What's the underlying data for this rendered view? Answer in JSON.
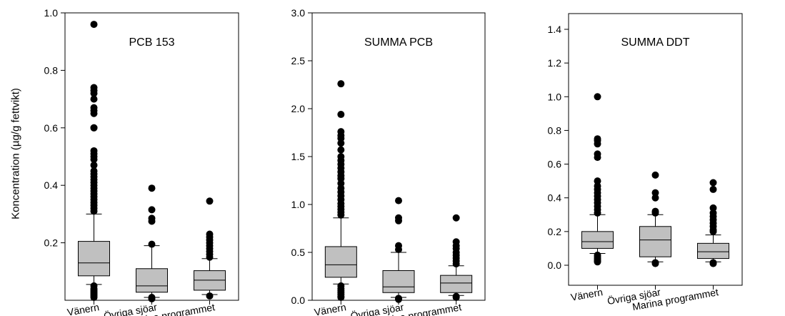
{
  "ylabel": "Koncentration (µg/g fettvikt)",
  "categories": [
    "Vänern",
    "Övriga sjöar",
    "Marina programmet"
  ],
  "colors": {
    "box_fill": "#c0c0c0",
    "stroke": "#000000",
    "outlier": "#000000"
  },
  "chart_data": [
    {
      "type": "box",
      "title": "PCB 153",
      "ylabel": "Koncentration (µg/g fettvikt)",
      "ylim": [
        0,
        1.0
      ],
      "yticks": [
        "0.2",
        "0.4",
        "0.6",
        "0.8",
        "1.0"
      ],
      "categories": [
        "Vänern",
        "Övriga sjöar",
        "Marina programmet"
      ],
      "boxes": [
        {
          "whisker_low": 0.055,
          "q1": 0.085,
          "median": 0.13,
          "q3": 0.205,
          "whisker_high": 0.3,
          "outliers": [
            0.96,
            0.74,
            0.73,
            0.72,
            0.7,
            0.67,
            0.66,
            0.65,
            0.6,
            0.6,
            0.52,
            0.51,
            0.5,
            0.49,
            0.47,
            0.45,
            0.44,
            0.43,
            0.42,
            0.41,
            0.4,
            0.39,
            0.38,
            0.37,
            0.36,
            0.35,
            0.34,
            0.33,
            0.32,
            0.31,
            0.05,
            0.04,
            0.035,
            0.03,
            0.025,
            0.02,
            0.015,
            0.01
          ]
        },
        {
          "whisker_low": 0.01,
          "q1": 0.028,
          "median": 0.05,
          "q3": 0.11,
          "whisker_high": 0.19,
          "outliers": [
            0.39,
            0.315,
            0.285,
            0.275,
            0.195,
            0.01,
            0.005
          ]
        },
        {
          "whisker_low": 0.02,
          "q1": 0.035,
          "median": 0.07,
          "q3": 0.103,
          "whisker_high": 0.145,
          "outliers": [
            0.345,
            0.23,
            0.22,
            0.21,
            0.2,
            0.19,
            0.18,
            0.17,
            0.16,
            0.15,
            0.015
          ]
        }
      ]
    },
    {
      "type": "box",
      "title": "SUMMA PCB",
      "ylim": [
        0,
        3.0
      ],
      "yticks": [
        "0.0",
        "0.5",
        "1.0",
        "1.5",
        "2.0",
        "2.5",
        "3.0"
      ],
      "categories": [
        "Vänern",
        "Övriga sjöar",
        "Marina programmet"
      ],
      "boxes": [
        {
          "whisker_low": 0.17,
          "q1": 0.24,
          "median": 0.37,
          "q3": 0.56,
          "whisker_high": 0.86,
          "outliers": [
            2.26,
            1.94,
            1.76,
            1.72,
            1.69,
            1.64,
            1.57,
            1.5,
            1.46,
            1.42,
            1.38,
            1.34,
            1.3,
            1.27,
            1.22,
            1.17,
            1.13,
            1.09,
            1.05,
            1.01,
            0.98,
            0.95,
            0.92,
            0.89,
            0.15,
            0.12,
            0.1,
            0.08,
            0.06,
            0.04,
            0.03
          ]
        },
        {
          "whisker_low": 0.03,
          "q1": 0.08,
          "median": 0.14,
          "q3": 0.31,
          "whisker_high": 0.5,
          "outliers": [
            1.04,
            0.86,
            0.83,
            0.57,
            0.53,
            0.02,
            0.01
          ]
        },
        {
          "whisker_low": 0.05,
          "q1": 0.08,
          "median": 0.18,
          "q3": 0.26,
          "whisker_high": 0.36,
          "outliers": [
            0.86,
            0.61,
            0.57,
            0.54,
            0.5,
            0.47,
            0.44,
            0.41,
            0.38,
            0.04,
            0.03
          ]
        }
      ]
    },
    {
      "type": "box",
      "title": "SUMMA DDT",
      "ylim": [
        -0.09,
        1.5
      ],
      "yticks": [
        "0.0",
        "0.2",
        "0.4",
        "0.6",
        "0.8",
        "1.0",
        "1.2",
        "1.4"
      ],
      "categories": [
        "Vänern",
        "Övriga sjöar",
        "Marina programmet"
      ],
      "boxes": [
        {
          "whisker_low": 0.07,
          "q1": 0.1,
          "median": 0.14,
          "q3": 0.2,
          "whisker_high": 0.3,
          "outliers": [
            1.0,
            0.75,
            0.74,
            0.72,
            0.66,
            0.64,
            0.5,
            0.47,
            0.45,
            0.43,
            0.41,
            0.39,
            0.37,
            0.35,
            0.33,
            0.31,
            0.06,
            0.05,
            0.04,
            0.03,
            0.025,
            0.02
          ]
        },
        {
          "whisker_low": 0.02,
          "q1": 0.05,
          "median": 0.15,
          "q3": 0.23,
          "whisker_high": 0.3,
          "outliers": [
            0.535,
            0.43,
            0.4,
            0.32,
            0.31,
            0.015,
            0.01
          ]
        },
        {
          "whisker_low": 0.02,
          "q1": 0.04,
          "median": 0.08,
          "q3": 0.13,
          "whisker_high": 0.18,
          "outliers": [
            0.49,
            0.45,
            0.34,
            0.31,
            0.29,
            0.27,
            0.25,
            0.23,
            0.21,
            0.2,
            0.015,
            0.01
          ]
        }
      ]
    }
  ]
}
